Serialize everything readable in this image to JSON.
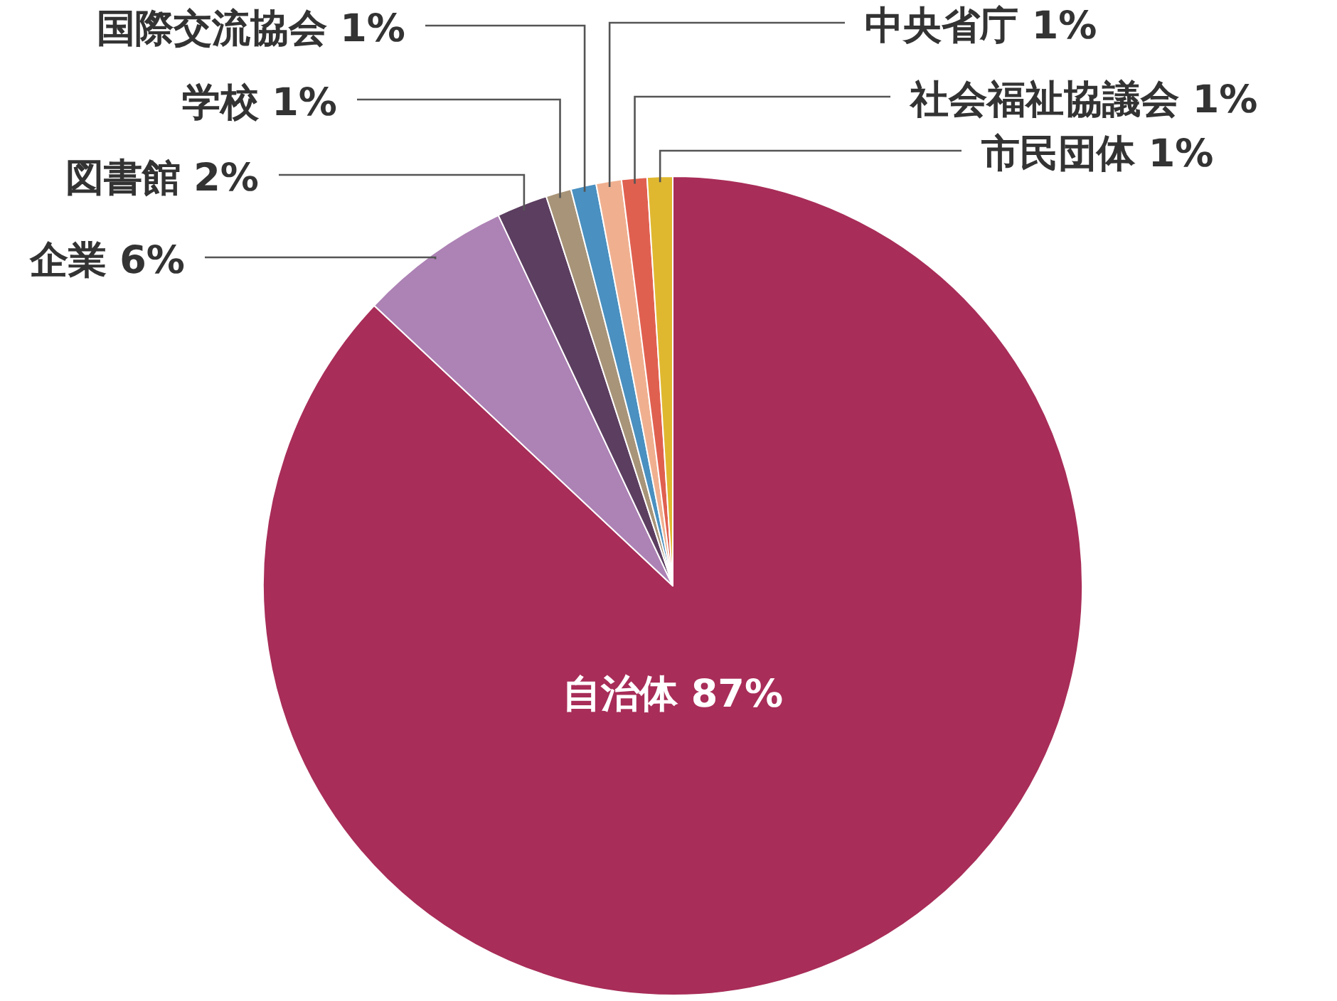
{
  "chart_data": {
    "type": "pie",
    "categories": [
      "自治体",
      "企業",
      "図書館",
      "学校",
      "国際交流協会",
      "中央省庁",
      "社会福祉協議会",
      "市民団体"
    ],
    "values": [
      87,
      6,
      2,
      1,
      1,
      1,
      1,
      1
    ],
    "value_labels": [
      "87%",
      "6%",
      "2%",
      "1%",
      "1%",
      "1%",
      "1%",
      "1%"
    ],
    "colors": [
      "#a82d58",
      "#ad82b5",
      "#5c3e60",
      "#a89478",
      "#4a90c0",
      "#f0b090",
      "#e06050",
      "#e0b830"
    ]
  }
}
